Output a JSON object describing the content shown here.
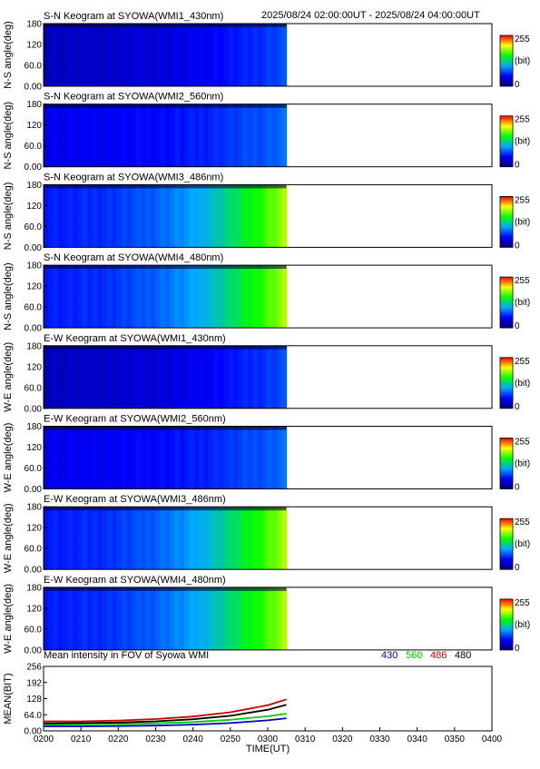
{
  "header": {
    "time_range": "2025/08/24 02:00:00UT - 2025/08/24 04:00:00UT"
  },
  "colorbar": {
    "max_label": "255",
    "unit_label": "(bit)",
    "min_label": "0",
    "colors": [
      "#00007a",
      "#0000ff",
      "#00aaff",
      "#00ff00",
      "#ffff00",
      "#ff0000"
    ]
  },
  "chart_data": [
    {
      "type": "heatmap",
      "title": "S-N Keogram at SYOWA(WMI1_430nm)",
      "ylabel": "N-S angle(deg)",
      "yticks": [
        "0.00",
        "60.0",
        "120",
        "180"
      ],
      "ylim": [
        0,
        180
      ],
      "xlim": [
        "02:00",
        "04:00"
      ],
      "data_end": "03:05",
      "intensity_start": 25,
      "intensity_end": 70
    },
    {
      "type": "heatmap",
      "title": "S-N Keogram at SYOWA(WMI2_560nm)",
      "ylabel": "N-S angle(deg)",
      "yticks": [
        "0.00",
        "60.0",
        "120",
        "180"
      ],
      "ylim": [
        0,
        180
      ],
      "xlim": [
        "02:00",
        "04:00"
      ],
      "data_end": "03:05",
      "intensity_start": 40,
      "intensity_end": 80
    },
    {
      "type": "heatmap",
      "title": "S-N Keogram at SYOWA(WMI3_486nm)",
      "ylabel": "N-S angle(deg)",
      "yticks": [
        "0.00",
        "60.0",
        "120",
        "180"
      ],
      "ylim": [
        0,
        180
      ],
      "xlim": [
        "02:00",
        "04:00"
      ],
      "data_end": "03:05",
      "intensity_start": 55,
      "intensity_end": 185
    },
    {
      "type": "heatmap",
      "title": "S-N Keogram at SYOWA(WMI4_480nm)",
      "ylabel": "N-S angle(deg)",
      "yticks": [
        "0.00",
        "60.0",
        "120",
        "180"
      ],
      "ylim": [
        0,
        180
      ],
      "xlim": [
        "02:00",
        "04:00"
      ],
      "data_end": "03:05",
      "intensity_start": 55,
      "intensity_end": 185
    },
    {
      "type": "heatmap",
      "title": "E-W Keogram at SYOWA(WMI1_430nm)",
      "ylabel": "W-E angle(deg)",
      "yticks": [
        "0.00",
        "60.0",
        "120",
        "180"
      ],
      "ylim": [
        0,
        180
      ],
      "xlim": [
        "02:00",
        "04:00"
      ],
      "data_end": "03:05",
      "intensity_start": 25,
      "intensity_end": 70
    },
    {
      "type": "heatmap",
      "title": "E-W Keogram at SYOWA(WMI2_560nm)",
      "ylabel": "W-E angle(deg)",
      "yticks": [
        "0.00",
        "60.0",
        "120",
        "180"
      ],
      "ylim": [
        0,
        180
      ],
      "xlim": [
        "02:00",
        "04:00"
      ],
      "data_end": "03:05",
      "intensity_start": 40,
      "intensity_end": 80
    },
    {
      "type": "heatmap",
      "title": "E-W Keogram at SYOWA(WMI3_486nm)",
      "ylabel": "W-E angle(deg)",
      "yticks": [
        "0.00",
        "60.0",
        "120",
        "180"
      ],
      "ylim": [
        0,
        180
      ],
      "xlim": [
        "02:00",
        "04:00"
      ],
      "data_end": "03:05",
      "intensity_start": 55,
      "intensity_end": 185
    },
    {
      "type": "heatmap",
      "title": "E-W Keogram at SYOWA(WMI4_480nm)",
      "ylabel": "W-E angle(deg)",
      "yticks": [
        "0.00",
        "60.0",
        "120",
        "180"
      ],
      "ylim": [
        0,
        180
      ],
      "xlim": [
        "02:00",
        "04:00"
      ],
      "data_end": "03:05",
      "intensity_start": 55,
      "intensity_end": 185
    },
    {
      "type": "line",
      "title": "Mean intensity in FOV of Syowa WMI",
      "xlabel": "TIME(UT)",
      "ylabel": "MEAN(BIT)",
      "ylim": [
        0,
        256
      ],
      "yticks": [
        "0.00",
        "64.0",
        "128",
        "192",
        "256"
      ],
      "xlim": [
        "02:00",
        "04:00"
      ],
      "xticks": [
        "0200",
        "0210",
        "0220",
        "0230",
        "0240",
        "0250",
        "0300",
        "0310",
        "0320",
        "0330",
        "0340",
        "0350",
        "0400"
      ],
      "series": [
        {
          "name": "430",
          "color": "#0000c0",
          "x": [
            "02:00",
            "02:10",
            "02:20",
            "02:30",
            "02:40",
            "02:50",
            "03:00",
            "03:05"
          ],
          "values": [
            18,
            18,
            19,
            21,
            25,
            31,
            42,
            50
          ]
        },
        {
          "name": "560",
          "color": "#00cc00",
          "x": [
            "02:00",
            "02:10",
            "02:20",
            "02:30",
            "02:40",
            "02:50",
            "03:00",
            "03:05"
          ],
          "values": [
            25,
            26,
            27,
            30,
            35,
            44,
            58,
            68
          ]
        },
        {
          "name": "486",
          "color": "#cc0000",
          "x": [
            "02:00",
            "02:10",
            "02:20",
            "02:30",
            "02:40",
            "02:50",
            "03:00",
            "03:05"
          ],
          "values": [
            38,
            38,
            41,
            47,
            57,
            74,
            102,
            125
          ]
        },
        {
          "name": "480",
          "color": "#000000",
          "x": [
            "02:00",
            "02:10",
            "02:20",
            "02:30",
            "02:40",
            "02:50",
            "03:00",
            "03:05"
          ],
          "values": [
            30,
            31,
            33,
            38,
            46,
            60,
            84,
            104
          ]
        }
      ]
    }
  ]
}
